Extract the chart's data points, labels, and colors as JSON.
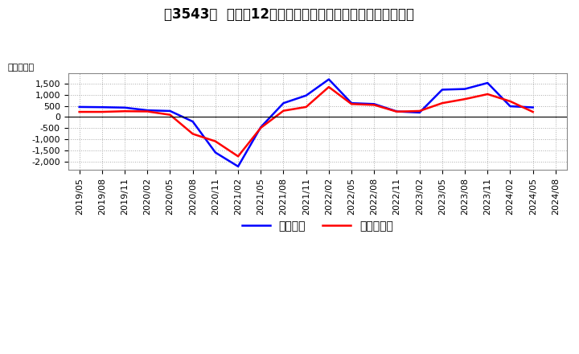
{
  "title": "［3543］  利益の12か月移動合計の対前年同期増減額の推移",
  "ylabel": "（百万円）",
  "x_labels": [
    "2019/05",
    "2019/08",
    "2019/11",
    "2020/02",
    "2020/05",
    "2020/08",
    "2020/11",
    "2021/02",
    "2021/05",
    "2021/08",
    "2021/11",
    "2022/02",
    "2022/05",
    "2022/08",
    "2022/11",
    "2023/02",
    "2023/05",
    "2023/08",
    "2023/11",
    "2024/02",
    "2024/05",
    "2024/08"
  ],
  "keijo_rieki": [
    450,
    440,
    420,
    300,
    270,
    -200,
    -1580,
    -2200,
    -450,
    620,
    960,
    1680,
    620,
    580,
    250,
    200,
    1220,
    1250,
    1520,
    480,
    430,
    null
  ],
  "touki_jun_rieki": [
    230,
    230,
    260,
    250,
    100,
    -750,
    -1080,
    -1750,
    -480,
    280,
    450,
    1340,
    580,
    540,
    240,
    270,
    620,
    800,
    1020,
    700,
    230,
    null
  ],
  "keijo_color": "#0000ff",
  "touki_color": "#ff0000",
  "ylim": [
    -2350,
    1950
  ],
  "yticks": [
    -2000,
    -1500,
    -1000,
    -500,
    0,
    500,
    1000,
    1500
  ],
  "bg_color": "#ffffff",
  "grid_color": "#aaaaaa",
  "title_fontsize": 12,
  "axis_fontsize": 8,
  "legend_fontsize": 10
}
